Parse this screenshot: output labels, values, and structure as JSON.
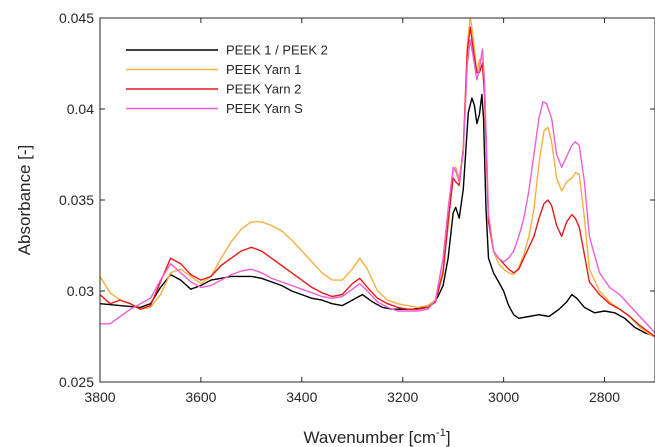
{
  "chart_data": {
    "type": "line",
    "title": "",
    "xlabel": "Wavenumber [cm",
    "xlabel_sup": "-1",
    "xlabel_suffix": "]",
    "ylabel": "Absorbance [-]",
    "xlim": [
      3800,
      2700
    ],
    "x_reversed": true,
    "ylim": [
      0.025,
      0.045
    ],
    "x_ticks": [
      3800,
      3600,
      3400,
      3200,
      3000,
      2800
    ],
    "x_tick_labels": [
      "3800",
      "3600",
      "3400",
      "3200",
      "3000",
      "2800"
    ],
    "y_ticks": [
      0.025,
      0.03,
      0.035,
      0.04,
      0.045
    ],
    "y_tick_labels": [
      "0.025",
      "0.03",
      "0.035",
      "0.04",
      "0.045"
    ],
    "grid": false,
    "legend_position": "top-left",
    "series": [
      {
        "name": "PEEK 1 / PEEK 2",
        "color": "#000000",
        "points": [
          [
            3800,
            0.0293
          ],
          [
            3760,
            0.0292
          ],
          [
            3720,
            0.0291
          ],
          [
            3700,
            0.0293
          ],
          [
            3680,
            0.0302
          ],
          [
            3660,
            0.0309
          ],
          [
            3640,
            0.0306
          ],
          [
            3620,
            0.0301
          ],
          [
            3600,
            0.0303
          ],
          [
            3580,
            0.0306
          ],
          [
            3560,
            0.0307
          ],
          [
            3540,
            0.0308
          ],
          [
            3520,
            0.0308
          ],
          [
            3500,
            0.0308
          ],
          [
            3480,
            0.0307
          ],
          [
            3460,
            0.0305
          ],
          [
            3440,
            0.0303
          ],
          [
            3420,
            0.03
          ],
          [
            3400,
            0.0298
          ],
          [
            3380,
            0.0296
          ],
          [
            3360,
            0.0295
          ],
          [
            3340,
            0.0293
          ],
          [
            3320,
            0.0292
          ],
          [
            3300,
            0.0295
          ],
          [
            3280,
            0.0298
          ],
          [
            3260,
            0.0294
          ],
          [
            3240,
            0.0291
          ],
          [
            3220,
            0.029
          ],
          [
            3200,
            0.029
          ],
          [
            3180,
            0.029
          ],
          [
            3160,
            0.0291
          ],
          [
            3140,
            0.0293
          ],
          [
            3130,
            0.0297
          ],
          [
            3120,
            0.0303
          ],
          [
            3110,
            0.0318
          ],
          [
            3100,
            0.0343
          ],
          [
            3095,
            0.0346
          ],
          [
            3088,
            0.034
          ],
          [
            3080,
            0.0356
          ],
          [
            3070,
            0.0398
          ],
          [
            3063,
            0.0406
          ],
          [
            3058,
            0.0402
          ],
          [
            3053,
            0.0392
          ],
          [
            3048,
            0.0397
          ],
          [
            3043,
            0.0408
          ],
          [
            3040,
            0.0395
          ],
          [
            3035,
            0.0345
          ],
          [
            3030,
            0.0318
          ],
          [
            3020,
            0.031
          ],
          [
            3010,
            0.0305
          ],
          [
            3000,
            0.03
          ],
          [
            2990,
            0.0292
          ],
          [
            2980,
            0.0287
          ],
          [
            2970,
            0.0285
          ],
          [
            2950,
            0.0286
          ],
          [
            2930,
            0.0287
          ],
          [
            2910,
            0.0286
          ],
          [
            2890,
            0.029
          ],
          [
            2875,
            0.0294
          ],
          [
            2865,
            0.0298
          ],
          [
            2855,
            0.0296
          ],
          [
            2840,
            0.0291
          ],
          [
            2820,
            0.0288
          ],
          [
            2800,
            0.0289
          ],
          [
            2780,
            0.0288
          ],
          [
            2760,
            0.0285
          ],
          [
            2740,
            0.028
          ],
          [
            2720,
            0.0277
          ],
          [
            2700,
            0.0275
          ]
        ]
      },
      {
        "name": "PEEK Yarn 1",
        "color": "#f5b041",
        "points": [
          [
            3800,
            0.0308
          ],
          [
            3780,
            0.0299
          ],
          [
            3760,
            0.0295
          ],
          [
            3740,
            0.0293
          ],
          [
            3720,
            0.029
          ],
          [
            3700,
            0.0291
          ],
          [
            3680,
            0.0298
          ],
          [
            3660,
            0.031
          ],
          [
            3640,
            0.0312
          ],
          [
            3620,
            0.0308
          ],
          [
            3600,
            0.0304
          ],
          [
            3580,
            0.0308
          ],
          [
            3560,
            0.0318
          ],
          [
            3540,
            0.0327
          ],
          [
            3520,
            0.0334
          ],
          [
            3500,
            0.0338
          ],
          [
            3480,
            0.0338
          ],
          [
            3460,
            0.0336
          ],
          [
            3440,
            0.0333
          ],
          [
            3420,
            0.0328
          ],
          [
            3400,
            0.0322
          ],
          [
            3380,
            0.0316
          ],
          [
            3360,
            0.031
          ],
          [
            3340,
            0.0306
          ],
          [
            3320,
            0.0306
          ],
          [
            3300,
            0.0312
          ],
          [
            3285,
            0.0318
          ],
          [
            3270,
            0.0312
          ],
          [
            3250,
            0.03
          ],
          [
            3230,
            0.0295
          ],
          [
            3210,
            0.0293
          ],
          [
            3190,
            0.0292
          ],
          [
            3170,
            0.0291
          ],
          [
            3150,
            0.0292
          ],
          [
            3135,
            0.0295
          ],
          [
            3120,
            0.0312
          ],
          [
            3110,
            0.0335
          ],
          [
            3100,
            0.0365
          ],
          [
            3095,
            0.0368
          ],
          [
            3088,
            0.0362
          ],
          [
            3080,
            0.0378
          ],
          [
            3072,
            0.0435
          ],
          [
            3066,
            0.0451
          ],
          [
            3060,
            0.0438
          ],
          [
            3053,
            0.042
          ],
          [
            3048,
            0.0427
          ],
          [
            3042,
            0.0428
          ],
          [
            3038,
            0.0412
          ],
          [
            3030,
            0.034
          ],
          [
            3020,
            0.0322
          ],
          [
            3010,
            0.0315
          ],
          [
            3000,
            0.0312
          ],
          [
            2990,
            0.031
          ],
          [
            2980,
            0.0309
          ],
          [
            2970,
            0.0313
          ],
          [
            2960,
            0.032
          ],
          [
            2950,
            0.033
          ],
          [
            2940,
            0.0345
          ],
          [
            2930,
            0.037
          ],
          [
            2920,
            0.0388
          ],
          [
            2912,
            0.039
          ],
          [
            2905,
            0.0382
          ],
          [
            2895,
            0.0362
          ],
          [
            2885,
            0.0355
          ],
          [
            2875,
            0.036
          ],
          [
            2865,
            0.0362
          ],
          [
            2858,
            0.0365
          ],
          [
            2850,
            0.0364
          ],
          [
            2840,
            0.034
          ],
          [
            2830,
            0.0312
          ],
          [
            2810,
            0.03
          ],
          [
            2790,
            0.0294
          ],
          [
            2770,
            0.029
          ],
          [
            2750,
            0.0286
          ],
          [
            2730,
            0.028
          ],
          [
            2710,
            0.0276
          ],
          [
            2700,
            0.0275
          ]
        ]
      },
      {
        "name": "PEEK Yarn 2",
        "color": "#e41a1c",
        "points": [
          [
            3800,
            0.0298
          ],
          [
            3780,
            0.0293
          ],
          [
            3760,
            0.0295
          ],
          [
            3740,
            0.0293
          ],
          [
            3720,
            0.029
          ],
          [
            3700,
            0.0292
          ],
          [
            3680,
            0.0305
          ],
          [
            3660,
            0.0318
          ],
          [
            3640,
            0.0315
          ],
          [
            3620,
            0.0309
          ],
          [
            3600,
            0.0306
          ],
          [
            3580,
            0.0308
          ],
          [
            3560,
            0.0314
          ],
          [
            3540,
            0.0318
          ],
          [
            3520,
            0.0322
          ],
          [
            3500,
            0.0324
          ],
          [
            3480,
            0.0322
          ],
          [
            3460,
            0.0318
          ],
          [
            3440,
            0.0314
          ],
          [
            3420,
            0.031
          ],
          [
            3400,
            0.0306
          ],
          [
            3380,
            0.0302
          ],
          [
            3360,
            0.0299
          ],
          [
            3340,
            0.0297
          ],
          [
            3320,
            0.0298
          ],
          [
            3300,
            0.0304
          ],
          [
            3285,
            0.0307
          ],
          [
            3270,
            0.0302
          ],
          [
            3250,
            0.0296
          ],
          [
            3230,
            0.0293
          ],
          [
            3210,
            0.0291
          ],
          [
            3190,
            0.029
          ],
          [
            3170,
            0.029
          ],
          [
            3150,
            0.0291
          ],
          [
            3135,
            0.0294
          ],
          [
            3120,
            0.031
          ],
          [
            3110,
            0.0338
          ],
          [
            3100,
            0.0362
          ],
          [
            3095,
            0.036
          ],
          [
            3088,
            0.0358
          ],
          [
            3080,
            0.0378
          ],
          [
            3072,
            0.0432
          ],
          [
            3066,
            0.0445
          ],
          [
            3060,
            0.0432
          ],
          [
            3053,
            0.042
          ],
          [
            3048,
            0.042
          ],
          [
            3042,
            0.0425
          ],
          [
            3038,
            0.0408
          ],
          [
            3030,
            0.0338
          ],
          [
            3020,
            0.0322
          ],
          [
            3010,
            0.0318
          ],
          [
            3000,
            0.0315
          ],
          [
            2990,
            0.0312
          ],
          [
            2980,
            0.031
          ],
          [
            2970,
            0.0312
          ],
          [
            2960,
            0.0318
          ],
          [
            2950,
            0.0324
          ],
          [
            2940,
            0.033
          ],
          [
            2930,
            0.034
          ],
          [
            2920,
            0.0348
          ],
          [
            2912,
            0.035
          ],
          [
            2905,
            0.0347
          ],
          [
            2895,
            0.0336
          ],
          [
            2885,
            0.033
          ],
          [
            2875,
            0.0338
          ],
          [
            2865,
            0.0342
          ],
          [
            2858,
            0.034
          ],
          [
            2850,
            0.0335
          ],
          [
            2840,
            0.032
          ],
          [
            2830,
            0.0305
          ],
          [
            2810,
            0.0298
          ],
          [
            2790,
            0.0293
          ],
          [
            2770,
            0.029
          ],
          [
            2750,
            0.0286
          ],
          [
            2730,
            0.0281
          ],
          [
            2710,
            0.0277
          ],
          [
            2700,
            0.0275
          ]
        ]
      },
      {
        "name": "PEEK Yarn S",
        "color": "#ee5fd5",
        "points": [
          [
            3800,
            0.0282
          ],
          [
            3780,
            0.0282
          ],
          [
            3760,
            0.0286
          ],
          [
            3740,
            0.029
          ],
          [
            3720,
            0.0293
          ],
          [
            3700,
            0.0296
          ],
          [
            3680,
            0.0306
          ],
          [
            3660,
            0.0315
          ],
          [
            3640,
            0.031
          ],
          [
            3620,
            0.0305
          ],
          [
            3600,
            0.0302
          ],
          [
            3580,
            0.0303
          ],
          [
            3560,
            0.0306
          ],
          [
            3540,
            0.0309
          ],
          [
            3520,
            0.0311
          ],
          [
            3500,
            0.0312
          ],
          [
            3480,
            0.031
          ],
          [
            3460,
            0.0307
          ],
          [
            3440,
            0.0305
          ],
          [
            3420,
            0.0303
          ],
          [
            3400,
            0.0301
          ],
          [
            3380,
            0.0299
          ],
          [
            3360,
            0.0297
          ],
          [
            3340,
            0.0296
          ],
          [
            3320,
            0.0297
          ],
          [
            3300,
            0.0301
          ],
          [
            3285,
            0.0304
          ],
          [
            3270,
            0.03
          ],
          [
            3250,
            0.0294
          ],
          [
            3230,
            0.0291
          ],
          [
            3210,
            0.0289
          ],
          [
            3190,
            0.0289
          ],
          [
            3170,
            0.0289
          ],
          [
            3150,
            0.029
          ],
          [
            3135,
            0.0295
          ],
          [
            3120,
            0.0318
          ],
          [
            3110,
            0.0345
          ],
          [
            3100,
            0.0368
          ],
          [
            3095,
            0.0366
          ],
          [
            3088,
            0.036
          ],
          [
            3080,
            0.0376
          ],
          [
            3072,
            0.0425
          ],
          [
            3066,
            0.0438
          ],
          [
            3060,
            0.0428
          ],
          [
            3053,
            0.0416
          ],
          [
            3048,
            0.0422
          ],
          [
            3042,
            0.0433
          ],
          [
            3038,
            0.0415
          ],
          [
            3030,
            0.0342
          ],
          [
            3020,
            0.0322
          ],
          [
            3010,
            0.0318
          ],
          [
            3000,
            0.0316
          ],
          [
            2990,
            0.0318
          ],
          [
            2980,
            0.0322
          ],
          [
            2970,
            0.033
          ],
          [
            2960,
            0.034
          ],
          [
            2950,
            0.0355
          ],
          [
            2940,
            0.0375
          ],
          [
            2930,
            0.0395
          ],
          [
            2922,
            0.0404
          ],
          [
            2915,
            0.0403
          ],
          [
            2905,
            0.0395
          ],
          [
            2895,
            0.0375
          ],
          [
            2885,
            0.0368
          ],
          [
            2875,
            0.0374
          ],
          [
            2865,
            0.038
          ],
          [
            2858,
            0.0382
          ],
          [
            2850,
            0.038
          ],
          [
            2840,
            0.036
          ],
          [
            2830,
            0.033
          ],
          [
            2810,
            0.031
          ],
          [
            2790,
            0.0302
          ],
          [
            2770,
            0.0298
          ],
          [
            2750,
            0.0292
          ],
          [
            2730,
            0.0286
          ],
          [
            2710,
            0.028
          ],
          [
            2700,
            0.0277
          ]
        ]
      }
    ]
  }
}
